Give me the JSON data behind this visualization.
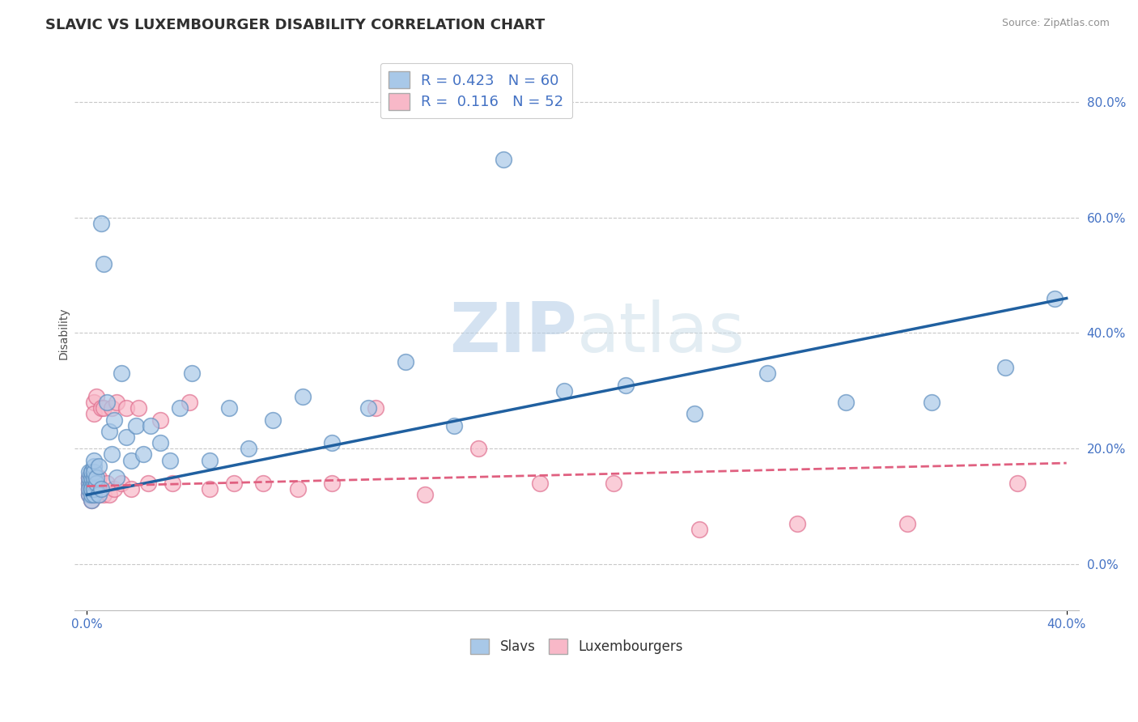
{
  "title": "SLAVIC VS LUXEMBOURGER DISABILITY CORRELATION CHART",
  "source_text": "Source: ZipAtlas.com",
  "ylabel": "Disability",
  "xlim": [
    -0.005,
    0.405
  ],
  "ylim": [
    -0.08,
    0.88
  ],
  "yticks": [
    0.0,
    0.2,
    0.4,
    0.6,
    0.8
  ],
  "xticks": [
    0.0,
    0.4
  ],
  "slavs_R": 0.423,
  "slavs_N": 60,
  "lux_R": 0.116,
  "lux_N": 52,
  "slavs_color": "#a8c8e8",
  "slavs_edge_color": "#6090c0",
  "lux_color": "#f8b8c8",
  "lux_edge_color": "#e07090",
  "slavs_line_color": "#2060a0",
  "lux_line_color": "#e06080",
  "watermark_color": "#d0e4f0",
  "background_color": "#ffffff",
  "grid_color": "#c8c8c8",
  "title_color": "#303030",
  "source_color": "#909090",
  "yticklabel_color": "#4472c4",
  "xticklabel_color": "#4472c4",
  "slavs_x": [
    0.001,
    0.001,
    0.001,
    0.001,
    0.001,
    0.002,
    0.002,
    0.002,
    0.002,
    0.002,
    0.002,
    0.002,
    0.002,
    0.003,
    0.003,
    0.003,
    0.003,
    0.003,
    0.003,
    0.003,
    0.004,
    0.004,
    0.005,
    0.005,
    0.006,
    0.006,
    0.007,
    0.008,
    0.009,
    0.01,
    0.011,
    0.012,
    0.014,
    0.016,
    0.018,
    0.02,
    0.023,
    0.026,
    0.03,
    0.034,
    0.038,
    0.043,
    0.05,
    0.058,
    0.066,
    0.076,
    0.088,
    0.1,
    0.115,
    0.13,
    0.15,
    0.17,
    0.195,
    0.22,
    0.248,
    0.278,
    0.31,
    0.345,
    0.375,
    0.395
  ],
  "slavs_y": [
    0.12,
    0.14,
    0.15,
    0.13,
    0.16,
    0.11,
    0.13,
    0.14,
    0.16,
    0.12,
    0.15,
    0.16,
    0.13,
    0.12,
    0.14,
    0.15,
    0.17,
    0.13,
    0.16,
    0.18,
    0.14,
    0.15,
    0.12,
    0.17,
    0.13,
    0.59,
    0.52,
    0.28,
    0.23,
    0.19,
    0.25,
    0.15,
    0.33,
    0.22,
    0.18,
    0.24,
    0.19,
    0.24,
    0.21,
    0.18,
    0.27,
    0.33,
    0.18,
    0.27,
    0.2,
    0.25,
    0.29,
    0.21,
    0.27,
    0.35,
    0.24,
    0.7,
    0.3,
    0.31,
    0.26,
    0.33,
    0.28,
    0.28,
    0.34,
    0.46
  ],
  "lux_x": [
    0.001,
    0.001,
    0.001,
    0.001,
    0.002,
    0.002,
    0.002,
    0.002,
    0.002,
    0.002,
    0.003,
    0.003,
    0.003,
    0.003,
    0.003,
    0.004,
    0.004,
    0.004,
    0.005,
    0.005,
    0.005,
    0.006,
    0.006,
    0.007,
    0.007,
    0.008,
    0.009,
    0.01,
    0.011,
    0.012,
    0.014,
    0.016,
    0.018,
    0.021,
    0.025,
    0.03,
    0.035,
    0.042,
    0.05,
    0.06,
    0.072,
    0.086,
    0.1,
    0.118,
    0.138,
    0.16,
    0.185,
    0.215,
    0.25,
    0.29,
    0.335,
    0.38
  ],
  "lux_y": [
    0.12,
    0.13,
    0.14,
    0.15,
    0.11,
    0.13,
    0.12,
    0.14,
    0.15,
    0.13,
    0.28,
    0.26,
    0.12,
    0.13,
    0.14,
    0.29,
    0.12,
    0.14,
    0.13,
    0.15,
    0.12,
    0.27,
    0.13,
    0.12,
    0.27,
    0.14,
    0.12,
    0.27,
    0.13,
    0.28,
    0.14,
    0.27,
    0.13,
    0.27,
    0.14,
    0.25,
    0.14,
    0.28,
    0.13,
    0.14,
    0.14,
    0.13,
    0.14,
    0.27,
    0.12,
    0.2,
    0.14,
    0.14,
    0.06,
    0.07,
    0.07,
    0.14
  ],
  "slavs_trendline_x0": 0.0,
  "slavs_trendline_x1": 0.4,
  "slavs_trendline_y0": 0.12,
  "slavs_trendline_y1": 0.46,
  "lux_trendline_x0": 0.0,
  "lux_trendline_x1": 0.4,
  "lux_trendline_y0": 0.135,
  "lux_trendline_y1": 0.175
}
